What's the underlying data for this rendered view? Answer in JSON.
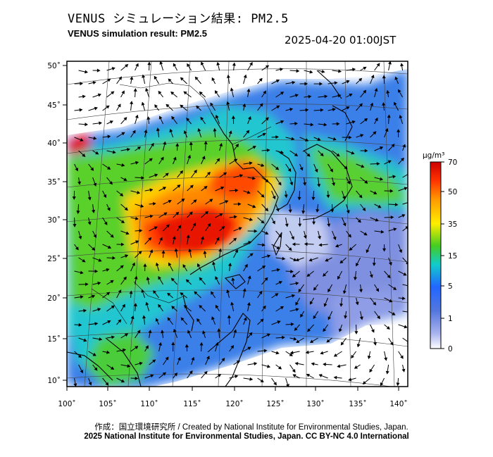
{
  "header": {
    "title_jp": "VENUS シミュレーション結果: PM2.5",
    "title_en": "VENUS simulation result: PM2.5",
    "timestamp": "2025-04-20 01:00JST"
  },
  "map": {
    "lat_labels": [
      "50˚",
      "45˚",
      "40˚",
      "35˚",
      "30˚",
      "25˚",
      "20˚",
      "15˚",
      "10˚"
    ],
    "lon_labels": [
      "100˚",
      "105˚",
      "110˚",
      "115˚",
      "120˚",
      "125˚",
      "130˚",
      "135˚",
      "140˚"
    ]
  },
  "colorbar": {
    "unit": "μg/m³",
    "labels": [
      "70",
      "50",
      "35",
      "15",
      "5",
      "1",
      "0"
    ],
    "colors": [
      "#cc0000",
      "#ff3300",
      "#ff9900",
      "#ffee00",
      "#44cc22",
      "#11cccc",
      "#2266ff",
      "#5577dd",
      "#aab4ee",
      "#ffffff"
    ]
  },
  "footer": {
    "credit": "作成：国立環境研究所 / Created by National Institute for Environmental Studies, Japan.",
    "license": "2025 National Institute for Environmental Studies, Japan. CC BY-NC 4.0 International"
  }
}
